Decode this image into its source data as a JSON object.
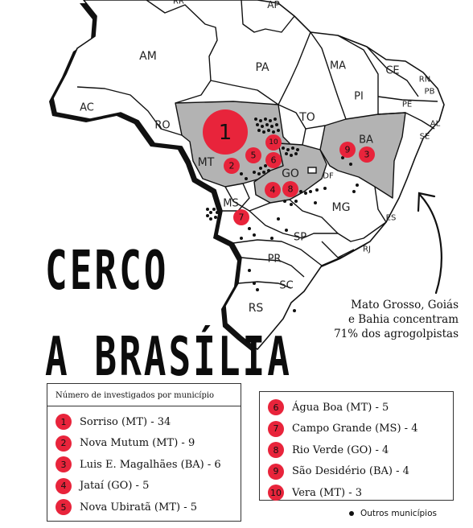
{
  "title": {
    "line1": "CERCO",
    "line2": "A BRASÍLIA"
  },
  "annotation": [
    "Mato Grosso, Goiás",
    "e Bahia concentram",
    "71% dos agrogolpistas"
  ],
  "colors": {
    "highlight_fill": "#b3b3b3",
    "marker": "#e8243b",
    "land": "#ffffff",
    "border": "#111111"
  },
  "states": [
    {
      "abbr": "RR"
    },
    {
      "abbr": "AP"
    },
    {
      "abbr": "AM"
    },
    {
      "abbr": "PA"
    },
    {
      "abbr": "MA"
    },
    {
      "abbr": "CE"
    },
    {
      "abbr": "RN"
    },
    {
      "abbr": "PB"
    },
    {
      "abbr": "PI"
    },
    {
      "abbr": "PE"
    },
    {
      "abbr": "AL"
    },
    {
      "abbr": "SE"
    },
    {
      "abbr": "AC"
    },
    {
      "abbr": "RO"
    },
    {
      "abbr": "TO"
    },
    {
      "abbr": "BA"
    },
    {
      "abbr": "MT"
    },
    {
      "abbr": "GO"
    },
    {
      "abbr": "DF"
    },
    {
      "abbr": "MG"
    },
    {
      "abbr": "ES"
    },
    {
      "abbr": "MS"
    },
    {
      "abbr": "SP"
    },
    {
      "abbr": "RJ"
    },
    {
      "abbr": "PR"
    },
    {
      "abbr": "SC"
    },
    {
      "abbr": "RS"
    }
  ],
  "highlighted_states": [
    "MT",
    "GO",
    "BA"
  ],
  "legend": {
    "title": "Número de investigados por município",
    "items": [
      {
        "rank": "1",
        "label": "Sorriso (MT) - 34"
      },
      {
        "rank": "2",
        "label": "Nova Mutum (MT) - 9"
      },
      {
        "rank": "3",
        "label": "Luis E. Magalhães (BA) - 6"
      },
      {
        "rank": "4",
        "label": "Jataí (GO) - 5"
      },
      {
        "rank": "5",
        "label": "Nova Ubiratã (MT) - 5"
      },
      {
        "rank": "6",
        "label": "Água Boa (MT) - 5"
      },
      {
        "rank": "7",
        "label": "Campo Grande (MS) - 4"
      },
      {
        "rank": "8",
        "label": "Rio Verde (GO) - 4"
      },
      {
        "rank": "9",
        "label": "São Desidério (BA) - 4"
      },
      {
        "rank": "10",
        "label": "Vera (MT) - 3"
      }
    ],
    "others_label": "Outros municípios"
  },
  "markers": [
    {
      "rank": "1",
      "count": 34
    },
    {
      "rank": "2",
      "count": 9
    },
    {
      "rank": "3",
      "count": 6
    },
    {
      "rank": "4",
      "count": 5
    },
    {
      "rank": "5",
      "count": 5
    },
    {
      "rank": "6",
      "count": 5
    },
    {
      "rank": "7",
      "count": 4
    },
    {
      "rank": "8",
      "count": 4
    },
    {
      "rank": "9",
      "count": 4
    },
    {
      "rank": "10",
      "count": 3
    }
  ]
}
